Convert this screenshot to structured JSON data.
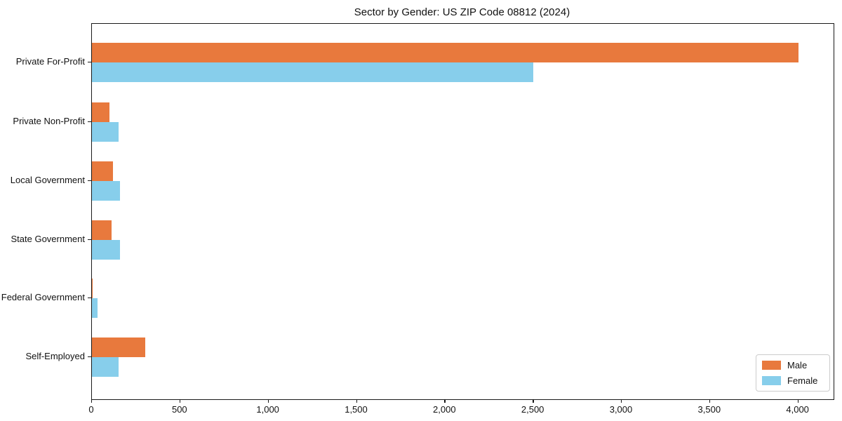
{
  "chart_data": {
    "type": "bar",
    "orientation": "horizontal",
    "title": "Sector by Gender: US ZIP Code 08812 (2024)",
    "categories": [
      "Private For-Profit",
      "Private Non-Profit",
      "Local Government",
      "State Government",
      "Federal Government",
      "Self-Employed"
    ],
    "series": [
      {
        "name": "Male",
        "color": "#e8793d",
        "values": [
          4000,
          100,
          120,
          110,
          5,
          300
        ]
      },
      {
        "name": "Female",
        "color": "#87ceeb",
        "values": [
          2500,
          150,
          160,
          160,
          30,
          150
        ]
      }
    ],
    "xlabel": "",
    "ylabel": "",
    "xlim": [
      0,
      4200
    ],
    "x_ticks": [
      0,
      500,
      1000,
      1500,
      2000,
      2500,
      3000,
      3500,
      4000
    ],
    "x_tick_labels": [
      "0",
      "500",
      "1,000",
      "1,500",
      "2,000",
      "2,500",
      "3,000",
      "3,500",
      "4,000"
    ],
    "grid": false,
    "legend_position": "lower right",
    "background_color": "#ffffff",
    "spine_color": "#1a1a1a"
  }
}
